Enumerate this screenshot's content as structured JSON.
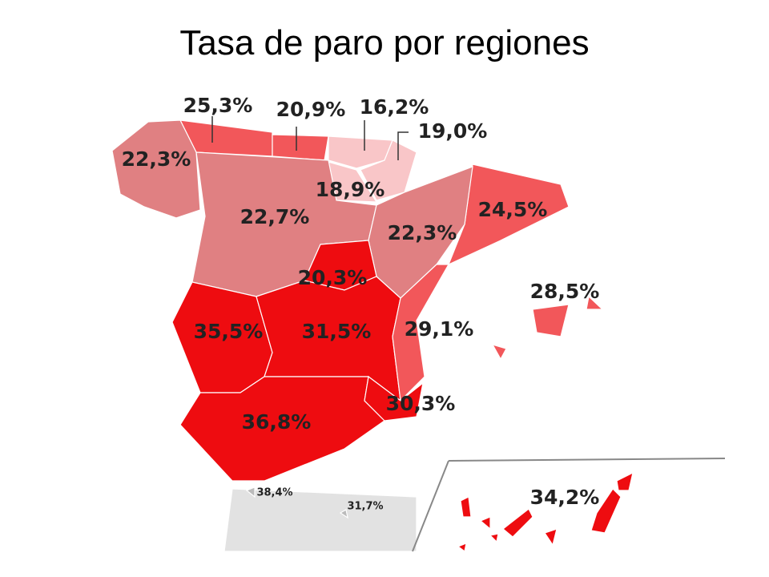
{
  "title": "Tasa de paro por regiones",
  "regions": [
    {
      "label": "25,3%"
    },
    {
      "label": "20,9%"
    },
    {
      "label": "16,2%"
    },
    {
      "label": "19,0%"
    },
    {
      "label": "22,3%"
    },
    {
      "label": "18,9%"
    },
    {
      "label": "22,7%"
    },
    {
      "label": "24,5%"
    },
    {
      "label": "22,3%"
    },
    {
      "label": "20,3%"
    },
    {
      "label": "28,5%"
    },
    {
      "label": "35,5%"
    },
    {
      "label": "31,5%"
    },
    {
      "label": "29,1%"
    },
    {
      "label": "36,8%"
    },
    {
      "label": "30,3%"
    },
    {
      "label": "38,4%"
    },
    {
      "label": "31,7%"
    },
    {
      "label": "34,2%"
    }
  ]
}
